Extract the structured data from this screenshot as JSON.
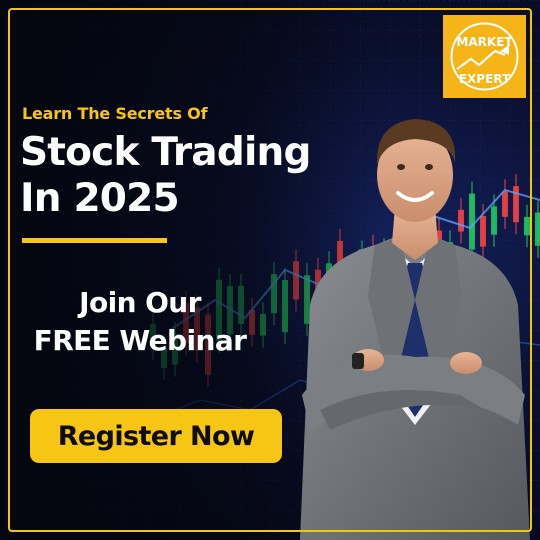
{
  "logo": {
    "line1": "MARKET",
    "line2": "EXPERT",
    "icon": "rising-arrow-icon"
  },
  "kicker": "Learn The Secrets Of",
  "headline": {
    "line1": "Stock Trading",
    "line2": "In 2025"
  },
  "subhead": {
    "line1": "Join Our",
    "line2": "FREE Webinar"
  },
  "cta": {
    "label": "Register Now"
  },
  "colors": {
    "accent": "#f7c614",
    "background": "#0a0f2e",
    "text": "#ffffff",
    "candle_up": "#22c55e",
    "candle_down": "#ef4444"
  }
}
